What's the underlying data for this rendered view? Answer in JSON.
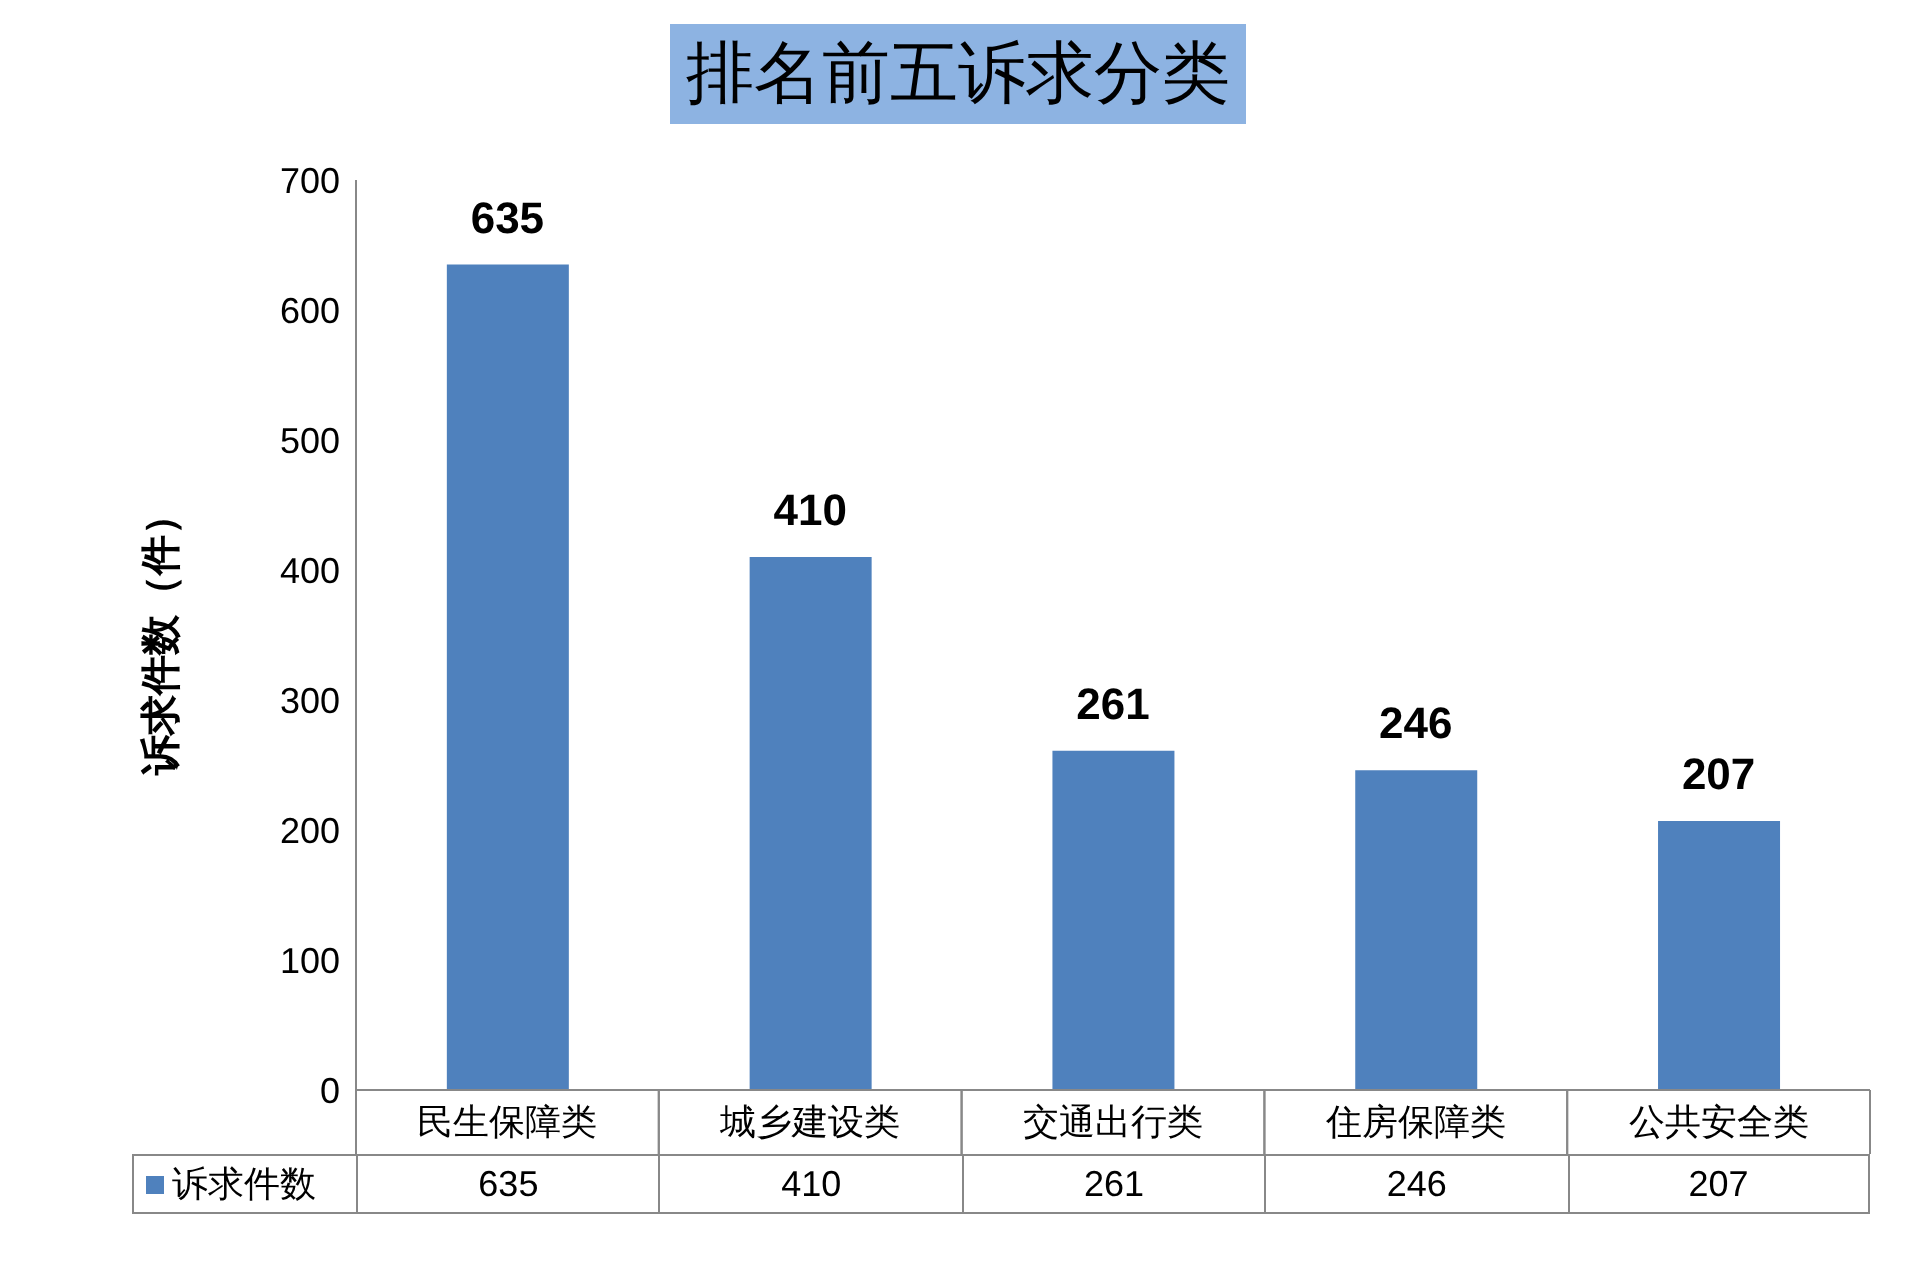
{
  "chart_data": {
    "type": "bar",
    "title": "排名前五诉求分类",
    "ylabel": "诉求件数（件）",
    "categories": [
      "民生保障类",
      "城乡建设类",
      "交通出行类",
      "住房保障类",
      "公共安全类"
    ],
    "series": [
      {
        "name": "诉求件数",
        "color": "#4f81bd",
        "values": [
          635,
          410,
          261,
          246,
          207
        ]
      }
    ],
    "annotations": [
      {
        "text": "635",
        "x": "民生保障类",
        "y": 635
      },
      {
        "text": "410",
        "x": "城乡建设类",
        "y": 410
      },
      {
        "text": "261",
        "x": "交通出行类",
        "y": 261
      },
      {
        "text": "246",
        "x": "住房保障类",
        "y": 246
      },
      {
        "text": "207",
        "x": "公共安全类",
        "y": 207
      }
    ],
    "ylim": [
      0,
      700
    ],
    "yticks": [
      0,
      100,
      200,
      300,
      400,
      500,
      600,
      700
    ],
    "data_labels": true,
    "legend": "bottom"
  }
}
